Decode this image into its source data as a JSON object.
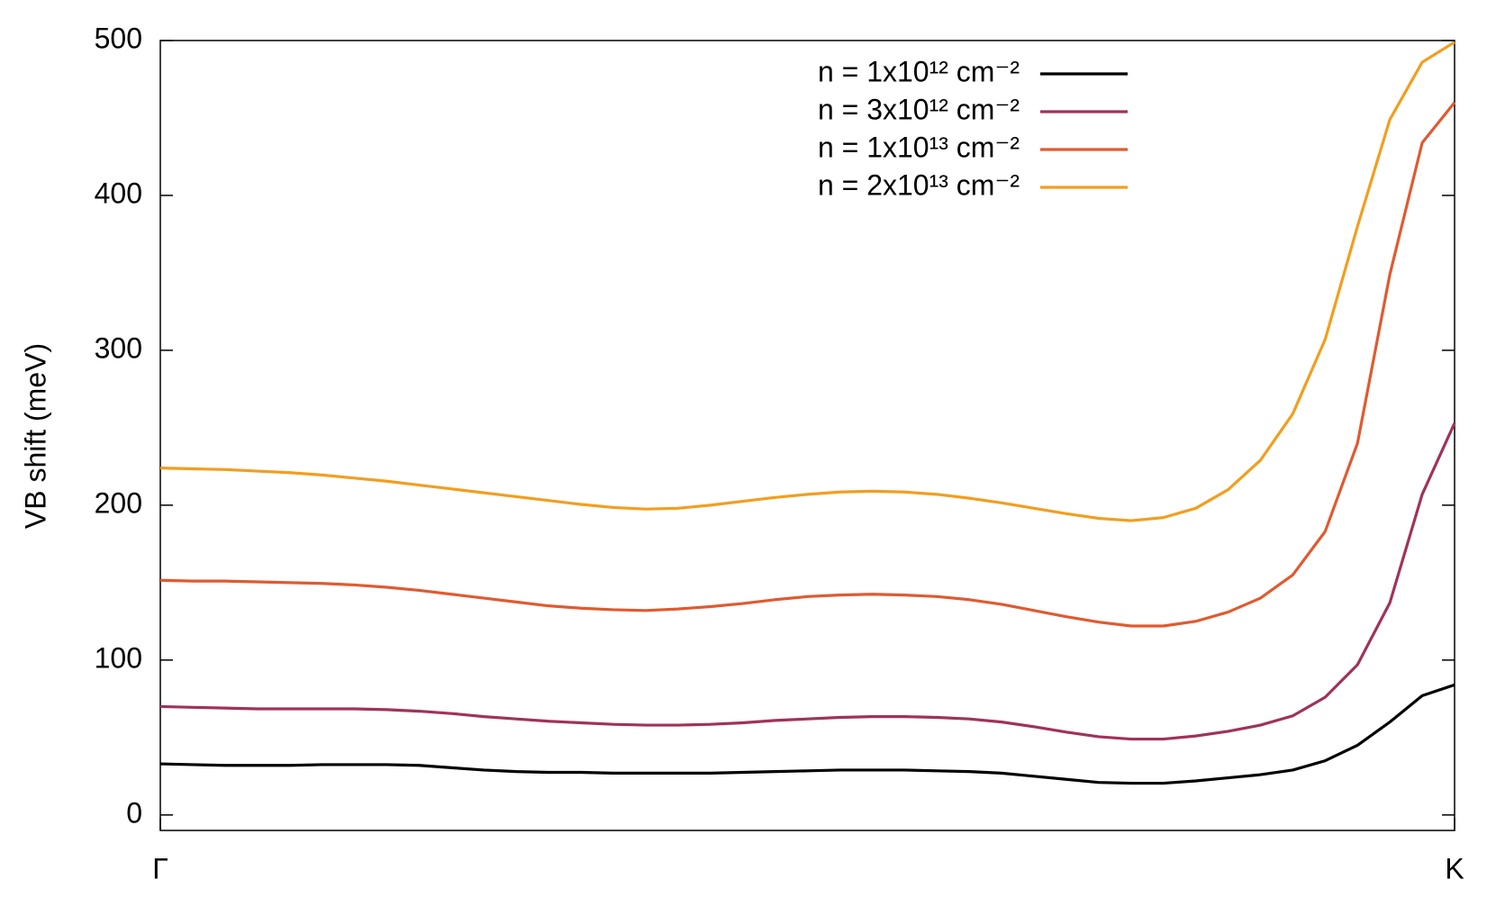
{
  "chart_data": {
    "type": "line",
    "ylabel": "VB shift (meV)",
    "x": [
      0,
      1,
      2,
      3,
      4,
      5,
      6,
      7,
      8,
      9,
      10,
      11,
      12,
      13,
      14,
      15,
      16,
      17,
      18,
      19,
      20,
      21,
      22,
      23,
      24,
      25,
      26,
      27,
      28,
      29,
      30,
      31,
      32,
      33,
      34,
      35,
      36,
      37,
      38,
      39,
      40
    ],
    "xlim": [
      0,
      40
    ],
    "xticks": [
      {
        "value": 0,
        "label": "Γ"
      },
      {
        "value": 40,
        "label": "K"
      }
    ],
    "ylim": [
      -10,
      500
    ],
    "yticks": [
      0,
      100,
      200,
      300,
      400,
      500
    ],
    "grid": false,
    "legend": "top",
    "series": [
      {
        "name": "n = 1x10¹² cm⁻²",
        "color": "#000000",
        "values": [
          33,
          32.5,
          32,
          32,
          32,
          32.5,
          32.5,
          32.5,
          32,
          30.5,
          29,
          28,
          27.5,
          27.5,
          27,
          27,
          27,
          27,
          27.5,
          28,
          28.5,
          29,
          29,
          29,
          28.5,
          28,
          27,
          25,
          23,
          21,
          20.5,
          20.5,
          22,
          24,
          26,
          29,
          35,
          45,
          60,
          77,
          84
        ]
      },
      {
        "name": "n = 3x10¹² cm⁻²",
        "color": "#a0325a",
        "values": [
          70,
          69.5,
          69,
          68.5,
          68.5,
          68.5,
          68.5,
          68,
          67,
          65.5,
          63.5,
          62,
          60.5,
          59.5,
          58.5,
          58,
          58,
          58.5,
          59.5,
          61,
          62,
          63,
          63.5,
          63.5,
          63,
          62,
          60,
          57,
          53.5,
          50.5,
          49,
          49,
          51,
          54,
          58,
          64,
          76,
          97,
          137,
          207,
          253
        ]
      },
      {
        "name": "n = 1x10¹³ cm⁻²",
        "color": "#e05a30",
        "values": [
          151.5,
          151,
          151,
          150.5,
          150,
          149.5,
          148.5,
          147,
          145,
          142.5,
          140,
          137.5,
          135,
          133.5,
          132.5,
          132,
          133,
          134.5,
          136.5,
          139,
          141,
          142,
          142.5,
          142,
          141,
          139,
          136,
          132,
          128,
          124.5,
          122,
          122,
          125,
          131,
          140,
          155,
          183,
          240,
          349,
          434,
          460
        ]
      },
      {
        "name": "n = 2x10¹³ cm⁻²",
        "color": "#f29e1f",
        "values": [
          224,
          223.5,
          223,
          222,
          221,
          219.5,
          217.5,
          215.5,
          213,
          210.5,
          208,
          205.5,
          203,
          200.5,
          198.5,
          197.5,
          198,
          200,
          202.5,
          205,
          207,
          208.5,
          209,
          208.5,
          207,
          204.5,
          201.5,
          198,
          194.5,
          191.5,
          190,
          192,
          198,
          210,
          229,
          259,
          307,
          380,
          449,
          486,
          499
        ]
      }
    ]
  }
}
